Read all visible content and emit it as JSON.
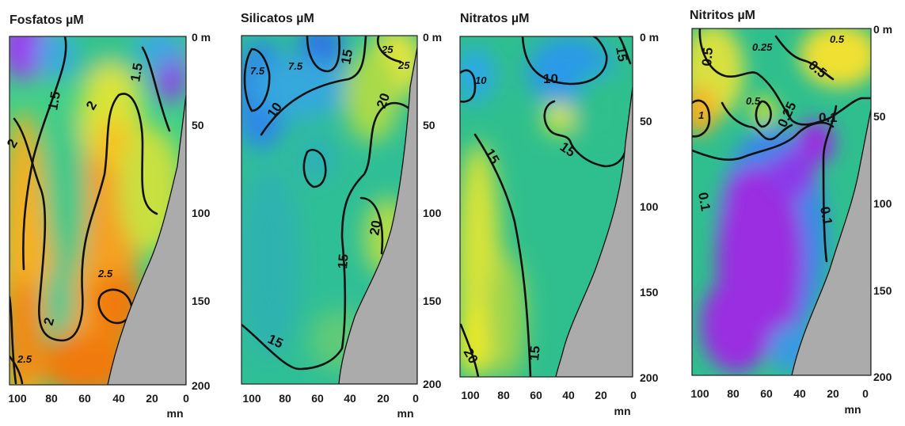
{
  "chart_data": [
    {
      "type": "heatmap",
      "title": "Fosfatos µM",
      "xlabel": "mn",
      "x_ticks": [
        100,
        80,
        60,
        40,
        20,
        0
      ],
      "xlim": [
        105,
        0
      ],
      "y_ticks": [
        0,
        50,
        100,
        150,
        200
      ],
      "y_tick_labels": [
        "0 m",
        "50",
        "100",
        "150",
        "200"
      ],
      "ylim": [
        0,
        200
      ],
      "contour_levels": [
        1.5,
        2,
        2.5
      ],
      "contour_labels": [
        {
          "text": "1.5",
          "x": 70,
          "y": 39
        },
        {
          "text": "1.5",
          "x": 17,
          "y": 24
        },
        {
          "text": "2",
          "x": 42,
          "y": 37
        },
        {
          "text": "2",
          "x": 101,
          "y": 63
        },
        {
          "text": "2",
          "x": 75,
          "y": 162
        },
        {
          "text": "2.5",
          "x": 46,
          "y": 135
        },
        {
          "text": "2.5",
          "x": 98,
          "y": 186
        }
      ],
      "colors": {
        "low": "#9a3cf0",
        "mid": "#2fc09a",
        "high": "#f07a10"
      }
    },
    {
      "type": "heatmap",
      "title": "Silicatos µM",
      "xlabel": "mn",
      "x_ticks": [
        100,
        80,
        60,
        40,
        20,
        0
      ],
      "xlim": [
        107,
        0
      ],
      "y_ticks": [
        0,
        50,
        100,
        150,
        200
      ],
      "y_tick_labels": [
        "0 m",
        "50",
        "100",
        "150",
        "200"
      ],
      "ylim": [
        0,
        200
      ],
      "contour_levels": [
        7.5,
        10,
        15,
        20,
        25
      ],
      "contour_labels": [
        {
          "text": "7.5",
          "x": 100,
          "y": 19
        },
        {
          "text": "7.5",
          "x": 72,
          "y": 17
        },
        {
          "text": "10",
          "x": 84,
          "y": 42
        },
        {
          "text": "15",
          "x": 47,
          "y": 20
        },
        {
          "text": "20",
          "x": 18,
          "y": 44
        },
        {
          "text": "25",
          "x": 12,
          "y": 5
        },
        {
          "text": "25",
          "x": 4,
          "y": 15
        },
        {
          "text": "20",
          "x": 19,
          "y": 111
        },
        {
          "text": "15",
          "x": 40,
          "y": 130
        },
        {
          "text": "15",
          "x": 78,
          "y": 185
        }
      ],
      "colors": {
        "low": "#2f7fe8",
        "mid": "#2fbf8e",
        "high": "#e8e83a"
      }
    },
    {
      "type": "heatmap",
      "title": "Nitratos µM",
      "xlabel": "mn",
      "x_ticks": [
        100,
        80,
        60,
        40,
        20,
        0
      ],
      "xlim": [
        104,
        0
      ],
      "y_ticks": [
        0,
        50,
        100,
        150,
        200
      ],
      "y_tick_labels": [
        "0 m",
        "50",
        "100",
        "150",
        "200"
      ],
      "ylim": [
        0,
        200
      ],
      "contour_levels": [
        10,
        15,
        20
      ],
      "contour_labels": [
        {
          "text": "10",
          "x": 96,
          "y": 27
        },
        {
          "text": "10",
          "x": 44,
          "y": 28
        },
        {
          "text": "15",
          "x": 6,
          "y": 7
        },
        {
          "text": "15",
          "x": 34,
          "y": 66
        },
        {
          "text": "15",
          "x": 84,
          "y": 70
        },
        {
          "text": "15",
          "x": 61,
          "y": 194
        },
        {
          "text": "20",
          "x": 101,
          "y": 176
        }
      ],
      "colors": {
        "low": "#2aa8e8",
        "mid": "#2fbf8e",
        "high": "#e8ea30"
      }
    },
    {
      "type": "heatmap",
      "title": "Nitritos µM",
      "xlabel": "mn",
      "x_ticks": [
        100,
        80,
        60,
        40,
        20,
        0
      ],
      "xlim": [
        108,
        0
      ],
      "y_ticks": [
        0,
        50,
        100,
        150,
        200
      ],
      "y_tick_labels": [
        "0 m",
        "50",
        "100",
        "150",
        "200"
      ],
      "ylim": [
        0,
        200
      ],
      "contour_levels": [
        0.1,
        0.25,
        0.5,
        1
      ],
      "contour_labels": [
        {
          "text": "0.5",
          "x": 99,
          "y": 13
        },
        {
          "text": "0.25",
          "x": 66,
          "y": 6
        },
        {
          "text": "0.5",
          "x": 13,
          "y": 3
        },
        {
          "text": "0.5",
          "x": 28,
          "y": 27
        },
        {
          "text": "0.5",
          "x": 62,
          "y": 42
        },
        {
          "text": "0.25",
          "x": 50,
          "y": 51
        },
        {
          "text": "0.1",
          "x": 22,
          "y": 53
        },
        {
          "text": "1",
          "x": 102,
          "y": 51
        },
        {
          "text": "0.1",
          "x": 95,
          "y": 101
        },
        {
          "text": "0.1",
          "x": 25,
          "y": 115
        }
      ],
      "colors": {
        "low": "#9a2fe0",
        "mid": "#2fbf8e",
        "high": "#f0e030"
      }
    }
  ]
}
